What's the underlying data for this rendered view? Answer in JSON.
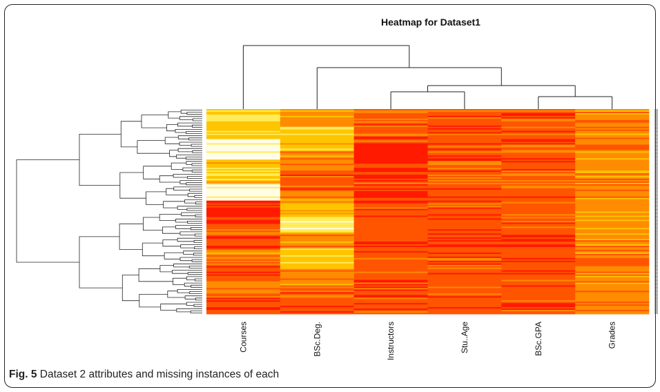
{
  "caption": {
    "label": "Fig. 5",
    "text": "Dataset 2 attributes and missing instances of each"
  },
  "chart_data": {
    "type": "heatmap",
    "title": "Heatmap for Dataset1",
    "columns": [
      "Courses",
      "BSc.Deg.",
      "Instructors",
      "Stu..Age",
      "BSc.GPA",
      "Grades"
    ],
    "column_dendrogram": true,
    "row_dendrogram": true,
    "color_scale": [
      "#ff1a00",
      "#ff5500",
      "#ff8c00",
      "#ffc400",
      "#ffec5a",
      "#fffde6"
    ],
    "column_profiles": [
      {
        "column": "Courses",
        "segments": [
          {
            "from": 0.0,
            "to": 0.03,
            "level": 3
          },
          {
            "from": 0.03,
            "to": 0.07,
            "level": 4
          },
          {
            "from": 0.07,
            "to": 0.15,
            "level": 3
          },
          {
            "from": 0.15,
            "to": 0.25,
            "level": 5
          },
          {
            "from": 0.25,
            "to": 0.29,
            "level": 3
          },
          {
            "from": 0.29,
            "to": 0.33,
            "level": 4
          },
          {
            "from": 0.33,
            "to": 0.37,
            "level": 3
          },
          {
            "from": 0.37,
            "to": 0.45,
            "level": 5
          },
          {
            "from": 0.45,
            "to": 0.56,
            "level": 0
          },
          {
            "from": 0.56,
            "to": 0.69,
            "level": 1
          },
          {
            "from": 0.69,
            "to": 0.76,
            "level": 2
          },
          {
            "from": 0.76,
            "to": 0.84,
            "level": 1
          },
          {
            "from": 0.84,
            "to": 0.91,
            "level": 2
          },
          {
            "from": 0.91,
            "to": 1.0,
            "level": 1
          }
        ]
      },
      {
        "column": "BSc.Deg.",
        "segments": [
          {
            "from": 0.0,
            "to": 0.09,
            "level": 2
          },
          {
            "from": 0.09,
            "to": 0.21,
            "level": 3
          },
          {
            "from": 0.21,
            "to": 0.3,
            "level": 2
          },
          {
            "from": 0.3,
            "to": 0.41,
            "level": 1
          },
          {
            "from": 0.41,
            "to": 0.46,
            "level": 2
          },
          {
            "from": 0.46,
            "to": 0.53,
            "level": 3
          },
          {
            "from": 0.53,
            "to": 0.61,
            "level": 4
          },
          {
            "from": 0.61,
            "to": 0.68,
            "level": 2
          },
          {
            "from": 0.68,
            "to": 0.78,
            "level": 3
          },
          {
            "from": 0.78,
            "to": 0.88,
            "level": 2
          },
          {
            "from": 0.88,
            "to": 1.0,
            "level": 1
          }
        ]
      },
      {
        "column": "Instructors",
        "segments": [
          {
            "from": 0.0,
            "to": 0.17,
            "level": 1
          },
          {
            "from": 0.17,
            "to": 0.27,
            "level": 0
          },
          {
            "from": 0.27,
            "to": 0.38,
            "level": 1
          },
          {
            "from": 0.38,
            "to": 0.46,
            "level": 0
          },
          {
            "from": 0.46,
            "to": 0.78,
            "level": 1
          },
          {
            "from": 0.78,
            "to": 1.0,
            "level": 1
          }
        ]
      },
      {
        "column": "Stu..Age",
        "segments": [
          {
            "from": 0.0,
            "to": 0.2,
            "level": 1
          },
          {
            "from": 0.2,
            "to": 0.36,
            "level": 1
          },
          {
            "from": 0.36,
            "to": 0.52,
            "level": 1
          },
          {
            "from": 0.52,
            "to": 0.72,
            "level": 1
          },
          {
            "from": 0.72,
            "to": 1.0,
            "level": 1
          }
        ]
      },
      {
        "column": "BSc.GPA",
        "segments": [
          {
            "from": 0.0,
            "to": 0.5,
            "level": 1
          },
          {
            "from": 0.5,
            "to": 1.0,
            "level": 1
          }
        ]
      },
      {
        "column": "Grades",
        "segments": [
          {
            "from": 0.0,
            "to": 0.5,
            "level": 2
          },
          {
            "from": 0.5,
            "to": 1.0,
            "level": 2
          }
        ]
      }
    ]
  }
}
